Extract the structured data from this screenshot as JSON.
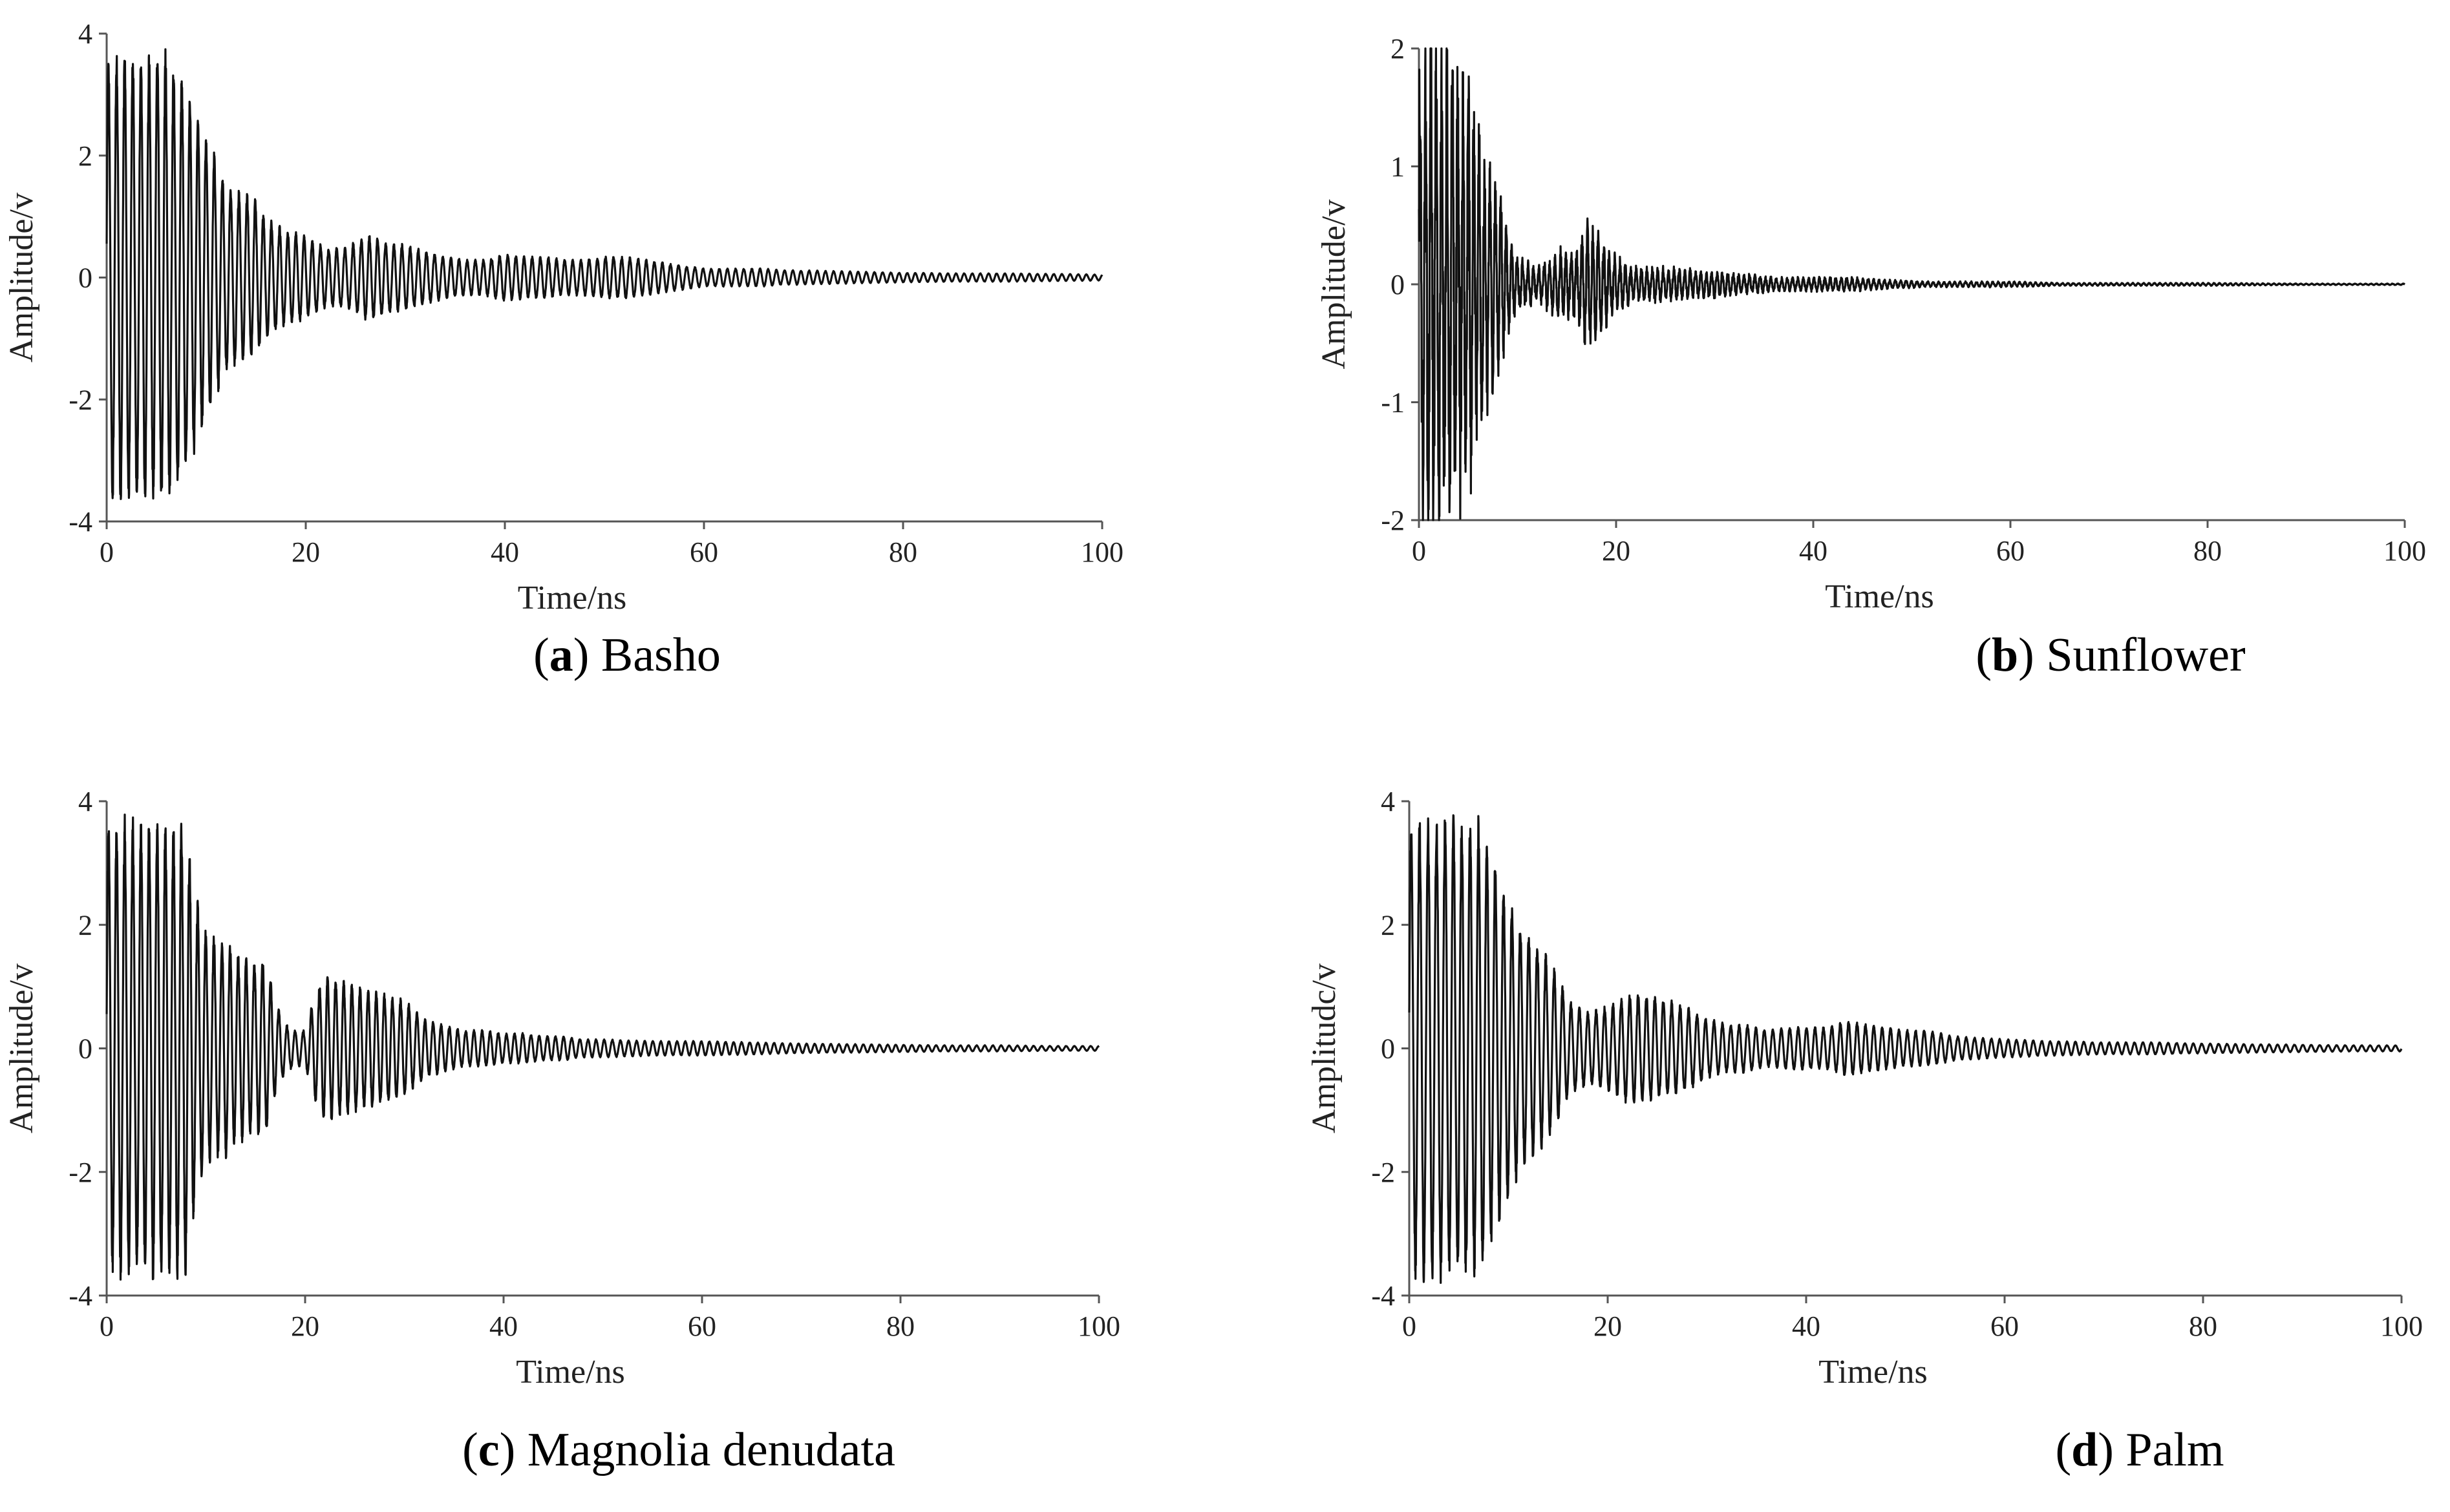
{
  "chart_data": [
    {
      "type": "line",
      "caption_letter": "a",
      "caption_name": "Basho",
      "xlabel": "Time/ns",
      "ylabel": "Amplitude/v",
      "xlim": [
        0,
        100
      ],
      "ylim": [
        -4,
        4
      ],
      "xticks": [
        0,
        20,
        40,
        60,
        80,
        100
      ],
      "yticks": [
        -4,
        -2,
        0,
        2,
        4
      ],
      "grid": false,
      "series": [
        {
          "x": [
            0,
            1,
            2,
            3,
            4,
            5,
            6,
            7,
            8,
            9,
            10,
            11,
            12,
            13,
            14,
            15,
            16,
            18,
            20,
            22,
            24,
            26,
            27,
            28,
            30,
            32,
            34,
            36,
            38,
            40,
            42,
            44,
            46,
            48,
            50,
            52,
            54,
            56,
            58,
            60,
            62,
            64,
            66,
            68,
            70,
            75,
            80,
            85,
            90,
            95,
            100
          ],
          "envelope": [
            3.8,
            3.8,
            3.8,
            3.8,
            3.8,
            3.8,
            3.8,
            3.6,
            3.2,
            2.9,
            2.4,
            2.0,
            1.6,
            1.5,
            1.4,
            1.3,
            1.0,
            0.8,
            0.7,
            0.5,
            0.5,
            0.7,
            0.7,
            0.6,
            0.55,
            0.45,
            0.35,
            0.3,
            0.3,
            0.4,
            0.35,
            0.35,
            0.3,
            0.3,
            0.35,
            0.35,
            0.3,
            0.25,
            0.2,
            0.15,
            0.15,
            0.15,
            0.15,
            0.12,
            0.12,
            0.1,
            0.08,
            0.07,
            0.07,
            0.06,
            0.05
          ],
          "period_ns": 0.82
        }
      ]
    },
    {
      "type": "line",
      "caption_letter": "b",
      "caption_name": "Sunflower",
      "xlabel": "Time/ns",
      "ylabel": "Amplitude/v",
      "xlim": [
        0,
        100
      ],
      "ylim": [
        -2,
        2
      ],
      "xticks": [
        0,
        20,
        40,
        60,
        80,
        100
      ],
      "yticks": [
        -2,
        -1,
        0,
        1,
        2
      ],
      "grid": false,
      "series": [
        {
          "x": [
            0,
            1,
            2,
            3,
            4,
            5,
            6,
            7,
            8,
            9,
            10,
            12,
            14,
            15,
            16,
            17,
            18,
            19,
            20,
            22,
            24,
            26,
            28,
            30,
            32,
            34,
            36,
            40,
            44,
            48,
            52,
            56,
            60,
            65,
            70,
            80,
            90,
            100
          ],
          "envelope": [
            1.9,
            1.9,
            1.8,
            1.7,
            1.6,
            1.5,
            1.2,
            0.9,
            0.7,
            0.4,
            0.2,
            0.12,
            0.25,
            0.25,
            0.25,
            0.45,
            0.4,
            0.3,
            0.2,
            0.12,
            0.12,
            0.12,
            0.1,
            0.1,
            0.08,
            0.07,
            0.05,
            0.05,
            0.05,
            0.03,
            0.02,
            0.02,
            0.02,
            0.01,
            0.01,
            0.01,
            0.005,
            0.005
          ],
          "period_ns": 0.55
        }
      ]
    },
    {
      "type": "line",
      "caption_letter": "c",
      "caption_name": "Magnolia denudata",
      "xlabel": "Time/ns",
      "ylabel": "Amplitude/v",
      "xlim": [
        0,
        100
      ],
      "ylim": [
        -4,
        4
      ],
      "xticks": [
        0,
        20,
        40,
        60,
        80,
        100
      ],
      "yticks": [
        -4,
        -2,
        0,
        2,
        4
      ],
      "grid": false,
      "series": [
        {
          "x": [
            0,
            1,
            2,
            3,
            4,
            5,
            6,
            7,
            8,
            9,
            10,
            11,
            12,
            13,
            14,
            15,
            16,
            17,
            18,
            19,
            20,
            21,
            22,
            24,
            26,
            28,
            30,
            32,
            34,
            36,
            38,
            40,
            42,
            44,
            46,
            48,
            50,
            55,
            60,
            65,
            70,
            75,
            80,
            85,
            90,
            95,
            100
          ],
          "envelope": [
            3.8,
            3.8,
            3.8,
            3.8,
            3.8,
            3.8,
            3.8,
            3.8,
            3.7,
            2.5,
            2.0,
            1.8,
            1.8,
            1.6,
            1.5,
            1.4,
            1.5,
            0.8,
            0.4,
            0.3,
            0.3,
            0.9,
            1.2,
            1.1,
            1.0,
            0.9,
            0.8,
            0.5,
            0.4,
            0.3,
            0.3,
            0.25,
            0.25,
            0.2,
            0.2,
            0.15,
            0.15,
            0.12,
            0.12,
            0.1,
            0.08,
            0.07,
            0.06,
            0.05,
            0.05,
            0.04,
            0.04
          ],
          "period_ns": 0.82
        }
      ]
    },
    {
      "type": "line",
      "caption_letter": "d",
      "caption_name": "Palm",
      "xlabel": "Time/ns",
      "ylabel": "Amplitudc/v",
      "xlim": [
        0,
        100
      ],
      "ylim": [
        -4,
        4
      ],
      "xticks": [
        0,
        20,
        40,
        60,
        80,
        100
      ],
      "yticks": [
        -4,
        -2,
        0,
        2,
        4
      ],
      "grid": false,
      "series": [
        {
          "x": [
            0,
            1,
            2,
            3,
            4,
            5,
            6,
            7,
            8,
            9,
            10,
            11,
            12,
            13,
            14,
            15,
            16,
            18,
            20,
            22,
            24,
            26,
            28,
            30,
            32,
            34,
            36,
            38,
            40,
            42,
            44,
            46,
            48,
            50,
            52,
            55,
            60,
            65,
            70,
            75,
            80,
            85,
            90,
            95,
            100
          ],
          "envelope": [
            3.8,
            3.8,
            3.8,
            3.8,
            3.8,
            3.8,
            3.8,
            3.8,
            3.5,
            2.9,
            2.5,
            2.1,
            1.9,
            1.7,
            1.5,
            1.2,
            0.8,
            0.6,
            0.7,
            0.9,
            0.9,
            0.8,
            0.7,
            0.5,
            0.4,
            0.4,
            0.3,
            0.35,
            0.35,
            0.35,
            0.45,
            0.4,
            0.35,
            0.3,
            0.3,
            0.2,
            0.15,
            0.12,
            0.1,
            0.1,
            0.08,
            0.07,
            0.06,
            0.05,
            0.05
          ],
          "period_ns": 0.85
        }
      ]
    }
  ]
}
